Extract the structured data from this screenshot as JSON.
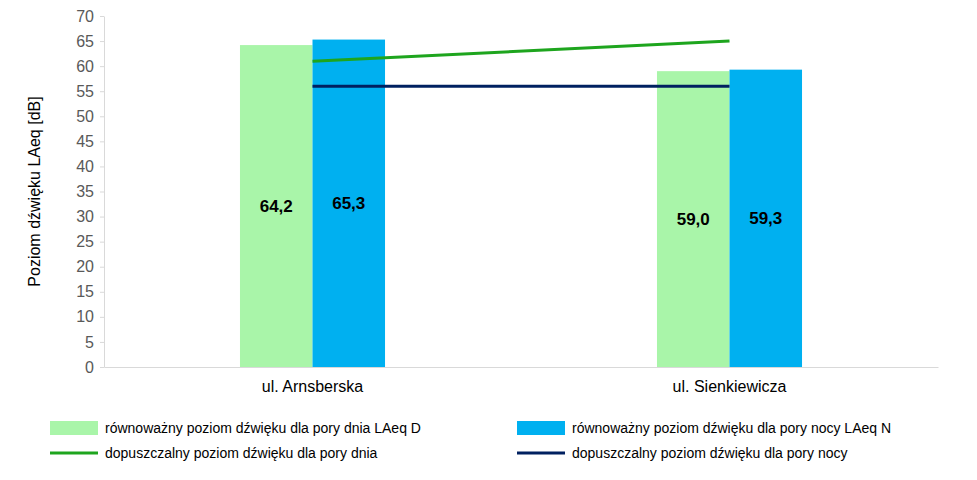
{
  "chart_data": {
    "type": "bar",
    "y_label": "Poziom dźwięku LAeq [dB]",
    "categories": [
      "ul. Arnsberska",
      "ul. Sienkiewicza"
    ],
    "series": [
      {
        "name": "równoważny poziom dźwięku dla pory dnia LAeq D",
        "type": "bar",
        "color": "#a9f5a9",
        "values": [
          64.2,
          59.0
        ],
        "value_labels": [
          "64,2",
          "59,0"
        ]
      },
      {
        "name": "równoważny poziom dźwięku dla pory nocy LAeq N",
        "type": "bar",
        "color": "#00b0f0",
        "values": [
          65.3,
          59.3
        ],
        "value_labels": [
          "65,3",
          "59,3"
        ]
      },
      {
        "name": "dopuszczalny poziom dźwięku dla pory dnia",
        "type": "line",
        "color": "#1ea51e",
        "values": [
          61,
          65
        ]
      },
      {
        "name": "dopuszczalny poziom dźwięku dla pory nocy",
        "type": "line",
        "color": "#002060",
        "values": [
          56,
          56
        ]
      }
    ],
    "ylim": [
      0,
      70
    ],
    "yticks": [
      0,
      5,
      10,
      15,
      20,
      25,
      30,
      35,
      40,
      45,
      50,
      55,
      60,
      65,
      70
    ],
    "grid": false,
    "data_labels": true,
    "legend": "bottom"
  }
}
